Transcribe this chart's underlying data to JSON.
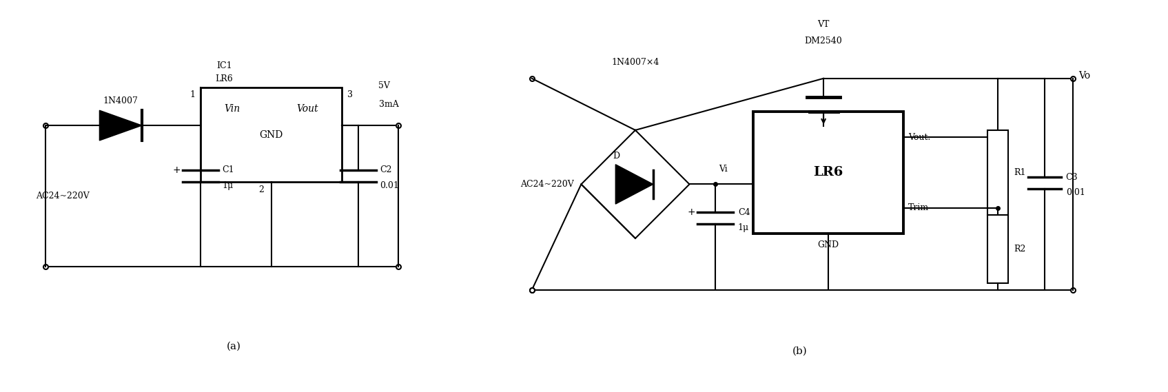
{
  "background_color": "#ffffff",
  "fig_width": 16.95,
  "fig_height": 5.69,
  "title_a": "(a)",
  "title_b": "(b)",
  "label_1n4007": "1N4007",
  "label_ac": "AC24~220V",
  "label_ic1": "IC1",
  "label_lr6_a": "LR6",
  "label_vin": "Vin",
  "label_vout": "Vout",
  "label_gnd": "GND",
  "label_c1": "C1",
  "label_1u_a": "1μ",
  "label_c2": "C2",
  "label_001_a": "0.01",
  "label_5v": "5V",
  "label_3ma": "3mA",
  "label_pin1": "1",
  "label_pin2": "2",
  "label_pin3": "3",
  "label_1n4007x4": "1N4007×4",
  "label_ac_b": "AC24~220V",
  "label_d": "D",
  "label_vi": "Vi",
  "label_vt": "VT",
  "label_dm2540": "DM2540",
  "label_lr6_b": "LR6",
  "label_vout_b": "Vout.",
  "label_trim": "Trim",
  "label_gnd_b": "GND",
  "label_r1": "R1",
  "label_r2": "R2",
  "label_c3": "C3",
  "label_001_b": "0.01",
  "label_c4": "C4",
  "label_1u_b": "1μ",
  "label_vo": "Vo"
}
